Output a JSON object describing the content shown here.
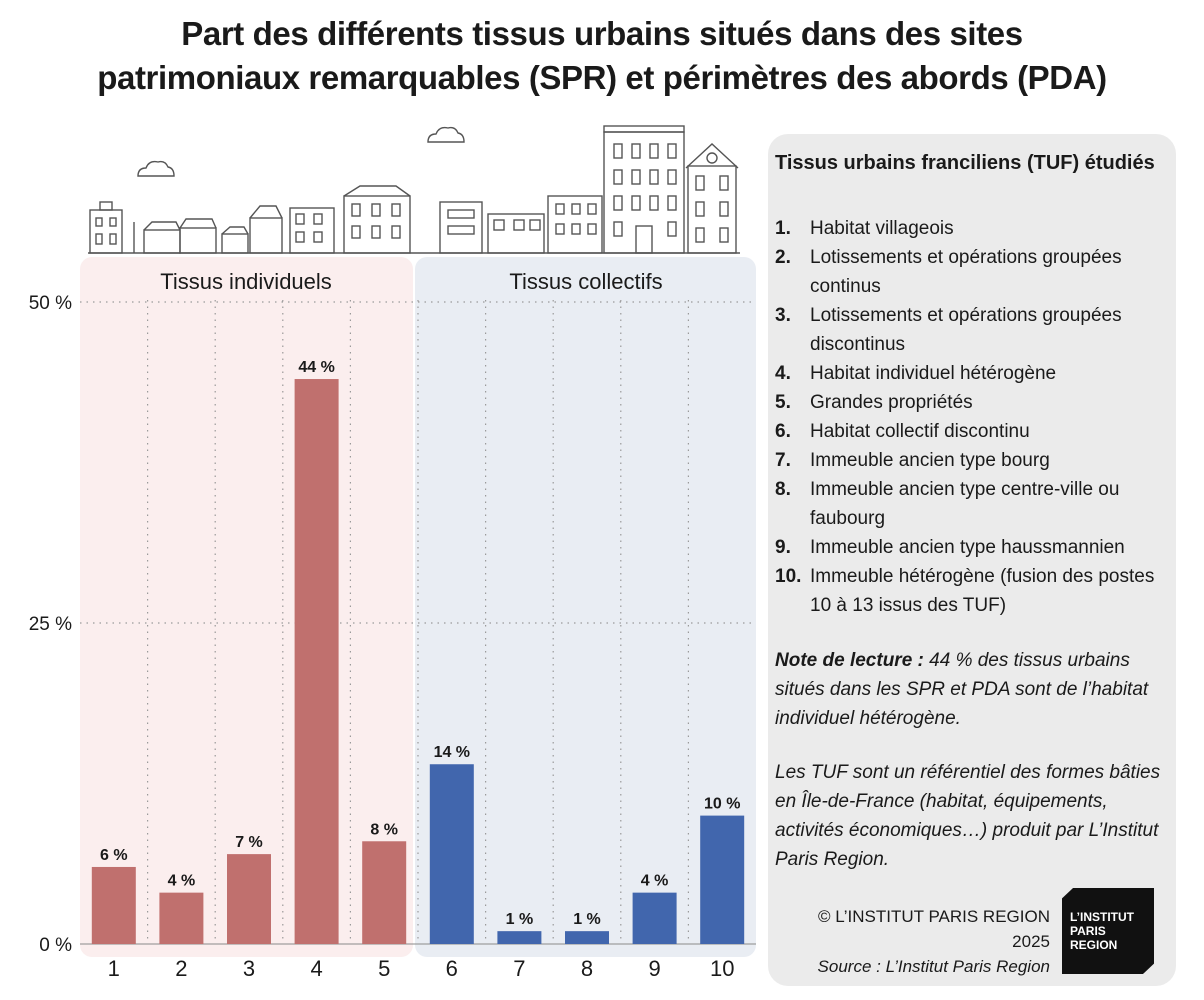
{
  "title_lines": [
    "Part des différents tissus urbains situés dans des sites",
    "patrimoniaux remarquables (SPR) et périmètres des abords (PDA)"
  ],
  "chart_data": {
    "type": "bar",
    "categories": [
      "1",
      "2",
      "3",
      "4",
      "5",
      "6",
      "7",
      "8",
      "9",
      "10"
    ],
    "values": [
      6,
      4,
      7,
      44,
      8,
      14,
      1,
      1,
      4,
      10
    ],
    "value_labels": [
      "6 %",
      "4 %",
      "7 %",
      "44 %",
      "8 %",
      "14 %",
      "1 %",
      "1 %",
      "4 %",
      "10 %"
    ],
    "y_ticks": [
      0,
      25,
      50
    ],
    "y_tick_labels": [
      "0 %",
      "25 %",
      "50 %"
    ],
    "ylim": [
      0,
      50
    ],
    "grid": true,
    "groups": [
      {
        "label": "Tissus individuels",
        "categories": [
          "1",
          "2",
          "3",
          "4",
          "5"
        ],
        "bar_color": "#c0706e",
        "band_color": "#fbeeee"
      },
      {
        "label": "Tissus collectifs",
        "categories": [
          "6",
          "7",
          "8",
          "9",
          "10"
        ],
        "bar_color": "#4166ad",
        "band_color": "#e9edf3"
      }
    ]
  },
  "legend": {
    "title": "Tissus urbains franciliens (TUF) étudiés",
    "items": [
      {
        "num": "1.",
        "text": "Habitat villageois"
      },
      {
        "num": "2.",
        "text": "Lotissements et opérations groupées continus"
      },
      {
        "num": "3.",
        "text": "Lotissements et opérations groupées discontinus"
      },
      {
        "num": "4.",
        "text": "Habitat individuel hétérogène"
      },
      {
        "num": "5.",
        "text": "Grandes propriétés"
      },
      {
        "num": "6.",
        "text": "Habitat collectif discontinu"
      },
      {
        "num": "7.",
        "text": "Immeuble ancien type bourg"
      },
      {
        "num": "8.",
        "text": "Immeuble ancien type centre-ville ou faubourg"
      },
      {
        "num": "9.",
        "text": "Immeuble ancien type haussmannien"
      },
      {
        "num": "10.",
        "text": "Immeuble hétérogène (fusion des postes 10 à 13 issus des TUF)"
      }
    ]
  },
  "note": {
    "label": "Note de lecture :",
    "text": " 44 % des tissus urbains situés dans les SPR et PDA sont de l’habitat individuel hétérogène."
  },
  "note2": "Les TUF sont un référentiel des formes bâties en Île-de-France (habitat, équipements, activités économiques…) produit par L’Institut Paris Region.",
  "credit": {
    "copyright": "© L’INSTITUT PARIS REGION 2025",
    "source": "Source : L’Institut Paris Region"
  },
  "logo_text": [
    "L’INSTITUT",
    "PARIS",
    "REGION"
  ],
  "icons": [
    "building-skyline-icon",
    "cloud-icon"
  ]
}
